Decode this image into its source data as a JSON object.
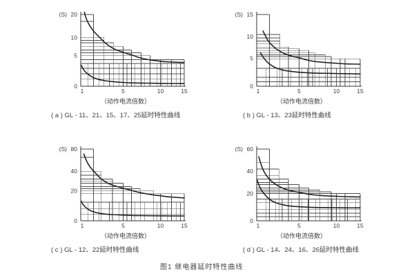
{
  "figure_caption": "图1  继电器延时特性曲线",
  "colors": {
    "curve": "#222222",
    "band": "#4a4a4a",
    "minor_grid": "#5a5a5a",
    "axis": "#333333",
    "text": "#3a3a3a"
  },
  "chart_data": [
    {
      "type": "line",
      "panel": "a",
      "caption": "( a ) GL - 11、21、15、17、25延时特性曲线",
      "xlabel": "（动作电流倍数）",
      "ylabel_unit": "(S)",
      "x_ticks": [
        {
          "v": 1,
          "f": 0
        },
        {
          "v": 5,
          "f": 0.41
        },
        {
          "v": 10,
          "f": 0.77
        },
        {
          "v": 15,
          "f": 1
        }
      ],
      "y_ticks": [
        {
          "v": 0,
          "f": 0
        },
        {
          "v": 5,
          "f": 0.43
        },
        {
          "v": 10,
          "f": 0.68
        },
        {
          "v": 20,
          "f": 1
        }
      ],
      "band_steps": [
        [
          1,
          2.2,
          20
        ],
        [
          2.2,
          3.2,
          10
        ],
        [
          3.2,
          4.1,
          8.5
        ],
        [
          4.1,
          5,
          7.5
        ],
        [
          5,
          6.1,
          6.5
        ],
        [
          6.1,
          7.4,
          5.7
        ],
        [
          7.4,
          8.6,
          5
        ],
        [
          8.6,
          15,
          4.3
        ]
      ],
      "h_gridlines": [
        1.2,
        2,
        2.9,
        3.7,
        9.2,
        17
      ],
      "v_gridlines": [
        10,
        12.3
      ],
      "minor_vlines": {
        "top_value": 3.7,
        "xs": [
          1.7,
          2.7,
          3.7,
          4.6,
          5.5,
          6.6,
          7.9,
          9.5,
          10.3,
          11.4,
          13.3,
          14.2
        ]
      },
      "series": [
        {
          "name": "upper-limit",
          "points": [
            [
              1.35,
              21
            ],
            [
              1.5,
              18.5
            ],
            [
              1.8,
              15.5
            ],
            [
              2.2,
              12.8
            ],
            [
              2.7,
              10.4
            ],
            [
              3.3,
              8.5
            ],
            [
              3.8,
              7.4
            ],
            [
              4.3,
              6.6
            ],
            [
              5,
              5.9
            ],
            [
              5.5,
              5.5
            ],
            [
              6.2,
              5.1
            ],
            [
              7,
              4.7
            ],
            [
              8,
              4.4
            ],
            [
              9,
              4.2
            ],
            [
              10,
              4.05
            ],
            [
              11,
              3.98
            ],
            [
              13,
              3.9
            ],
            [
              15,
              3.85
            ]
          ]
        },
        {
          "name": "lower-limit",
          "points": [
            [
              1.05,
              3.4
            ],
            [
              1.2,
              2.9
            ],
            [
              1.4,
              2.4
            ],
            [
              1.8,
              1.8
            ],
            [
              2.2,
              1.4
            ],
            [
              2.7,
              1.1
            ],
            [
              3.3,
              0.9
            ],
            [
              4,
              0.75
            ],
            [
              5,
              0.62
            ],
            [
              6,
              0.55
            ],
            [
              8,
              0.5
            ],
            [
              10,
              0.47
            ],
            [
              12,
              0.45
            ],
            [
              15,
              0.44
            ]
          ]
        }
      ]
    },
    {
      "type": "line",
      "panel": "b",
      "caption": "( b ) GL - 13、23延时特性曲线",
      "xlabel": "（动作电流倍数）",
      "ylabel_unit": "(S)",
      "x_ticks": [
        {
          "v": 1,
          "f": 0
        },
        {
          "v": 5,
          "f": 0.41
        },
        {
          "v": 10,
          "f": 0.77
        },
        {
          "v": 15,
          "f": 1
        }
      ],
      "y_ticks": [
        {
          "v": 0,
          "f": 0
        },
        {
          "v": 5,
          "f": 0.39
        },
        {
          "v": 10,
          "f": 0.69
        },
        {
          "v": 15,
          "f": 1
        }
      ],
      "band_steps": [
        [
          1,
          2.2,
          15
        ],
        [
          2.2,
          3.2,
          10.5
        ],
        [
          3.2,
          4,
          7.6
        ],
        [
          4,
          5,
          7.2
        ],
        [
          5,
          6.3,
          6.8
        ],
        [
          6.3,
          7.1,
          6.3
        ],
        [
          7.1,
          8.5,
          5.8
        ],
        [
          8.5,
          9.3,
          5.4
        ],
        [
          9.3,
          15,
          4.9
        ]
      ],
      "h_gridlines": [
        0.8,
        1.6,
        3.2,
        8.4,
        9,
        9.7
      ],
      "v_gridlines": [
        10.8,
        11.8
      ],
      "minor_vlines": {
        "top_value": 3.2,
        "xs": [
          1.9,
          2.9,
          3.4,
          4.2,
          5.4,
          6.1,
          6.8,
          7.7,
          8.8,
          10,
          12.8,
          14
        ]
      },
      "series": [
        {
          "name": "upper-limit",
          "points": [
            [
              1.6,
              11.3
            ],
            [
              1.8,
              10.3
            ],
            [
              2.1,
              9
            ],
            [
              2.5,
              7.9
            ],
            [
              3,
              6.9
            ],
            [
              3.6,
              6.1
            ],
            [
              4.3,
              5.5
            ],
            [
              5,
              5.1
            ],
            [
              6,
              4.7
            ],
            [
              7,
              4.45
            ],
            [
              8,
              4.3
            ],
            [
              9,
              4.2
            ],
            [
              10,
              4.1
            ],
            [
              12,
              4
            ],
            [
              15,
              3.95
            ]
          ]
        },
        {
          "name": "lower-limit",
          "points": [
            [
              1.35,
              6.3
            ],
            [
              1.6,
              5.3
            ],
            [
              2,
              4.3
            ],
            [
              2.5,
              3.6
            ],
            [
              3,
              3.15
            ],
            [
              3.7,
              2.8
            ],
            [
              4.5,
              2.6
            ],
            [
              5.5,
              2.45
            ],
            [
              7,
              2.35
            ],
            [
              9,
              2.3
            ],
            [
              11,
              2.25
            ],
            [
              15,
              2.2
            ]
          ]
        }
      ]
    },
    {
      "type": "line",
      "panel": "c",
      "caption": "( c ) GL - 12、22延时特性曲线",
      "xlabel": "（动作电流倍数）",
      "ylabel_unit": "(S)",
      "x_ticks": [
        {
          "v": 1,
          "f": 0
        },
        {
          "v": 5,
          "f": 0.41
        },
        {
          "v": 10,
          "f": 0.77
        },
        {
          "v": 15,
          "f": 1
        }
      ],
      "y_ticks": [
        {
          "v": 0,
          "f": 0
        },
        {
          "v": 20,
          "f": 0.42
        },
        {
          "v": 40,
          "f": 0.69
        },
        {
          "v": 80,
          "f": 1
        }
      ],
      "band_steps": [
        [
          1,
          2.2,
          80
        ],
        [
          2.2,
          2.9,
          40
        ],
        [
          2.9,
          4,
          32
        ],
        [
          4,
          5,
          27.6
        ],
        [
          5,
          6.1,
          24.2
        ],
        [
          6.1,
          7.3,
          22
        ],
        [
          7.3,
          9.1,
          20
        ],
        [
          9.1,
          15,
          18
        ]
      ],
      "h_gridlines": [
        4.2,
        8.1,
        12.4,
        30,
        36,
        65
      ],
      "v_gridlines": [
        10,
        12.3
      ],
      "minor_vlines": {
        "top_value": 12.4,
        "xs": [
          1.7,
          2.7,
          3.7,
          4.6,
          5.5,
          6.6,
          7.9,
          9.5,
          10.3,
          11.4,
          13.3,
          14.2
        ]
      },
      "series": [
        {
          "name": "upper-limit",
          "points": [
            [
              1.3,
              71
            ],
            [
              1.45,
              63
            ],
            [
              1.7,
              53
            ],
            [
              2,
              45
            ],
            [
              2.4,
              38
            ],
            [
              2.9,
              32.5
            ],
            [
              3.5,
              28
            ],
            [
              4.2,
              25
            ],
            [
              5,
              22.5
            ],
            [
              6,
              20.5
            ],
            [
              7,
              19
            ],
            [
              8,
              18
            ],
            [
              9,
              17.2
            ],
            [
              10,
              16.6
            ],
            [
              12,
              15.8
            ],
            [
              15,
              15.2
            ]
          ]
        },
        {
          "name": "lower-limit",
          "points": [
            [
              1.05,
              13
            ],
            [
              1.2,
              11
            ],
            [
              1.45,
              9
            ],
            [
              1.8,
              7.2
            ],
            [
              2.2,
              6
            ],
            [
              2.7,
              5.1
            ],
            [
              3.3,
              4.5
            ],
            [
              4,
              4.1
            ],
            [
              5,
              3.8
            ],
            [
              6.5,
              3.5
            ],
            [
              8,
              3.4
            ],
            [
              10,
              3.3
            ],
            [
              12,
              3.25
            ],
            [
              15,
              3.2
            ]
          ]
        }
      ]
    },
    {
      "type": "line",
      "panel": "d",
      "caption": "( d ) GL - 14、24、16、26延时特性曲线",
      "xlabel": "（动作电流倍数）",
      "ylabel_unit": "(S)",
      "x_ticks": [
        {
          "v": 1,
          "f": 0
        },
        {
          "v": 5,
          "f": 0.41
        },
        {
          "v": 10,
          "f": 0.77
        },
        {
          "v": 15,
          "f": 1
        }
      ],
      "y_ticks": [
        {
          "v": 0,
          "f": 0
        },
        {
          "v": 20,
          "f": 0.38
        },
        {
          "v": 40,
          "f": 0.69
        },
        {
          "v": 60,
          "f": 1
        }
      ],
      "band_steps": [
        [
          1,
          2.2,
          60
        ],
        [
          2.2,
          3.1,
          42
        ],
        [
          3.1,
          4,
          33
        ],
        [
          4,
          5,
          28
        ],
        [
          5,
          6.3,
          25
        ],
        [
          6.3,
          7.8,
          23
        ],
        [
          7.8,
          9.3,
          21.5
        ],
        [
          9.3,
          15,
          20
        ]
      ],
      "h_gridlines": [
        3.1,
        5.6,
        8.2,
        13.3,
        16,
        30,
        36,
        48
      ],
      "v_gridlines": [
        10,
        11.8
      ],
      "minor_vlines": {
        "top_value": 16,
        "xs": [
          1.9,
          2.8,
          3.4,
          4.3,
          5.4,
          6.2,
          7.2,
          8.9,
          9.4,
          10.7,
          12.3,
          14
        ]
      },
      "series": [
        {
          "name": "upper-limit",
          "points": [
            [
              1.2,
              53
            ],
            [
              1.4,
              46.5
            ],
            [
              1.7,
              39.5
            ],
            [
              2.1,
              34
            ],
            [
              2.6,
              29.5
            ],
            [
              3.2,
              26
            ],
            [
              4,
              23
            ],
            [
              5,
              21
            ],
            [
              6,
              19.8
            ],
            [
              7,
              19
            ],
            [
              8,
              18.5
            ],
            [
              10,
              18
            ],
            [
              12,
              17.7
            ],
            [
              15,
              17.5
            ]
          ]
        },
        {
          "name": "lower-limit",
          "points": [
            [
              1.05,
              32
            ],
            [
              1.2,
              28
            ],
            [
              1.45,
              23
            ],
            [
              1.8,
              19
            ],
            [
              2.2,
              15.8
            ],
            [
              2.7,
              13.6
            ],
            [
              3.3,
              12.1
            ],
            [
              4,
              11
            ],
            [
              5,
              10.3
            ],
            [
              6.5,
              9.9
            ],
            [
              8,
              9.7
            ],
            [
              10,
              9.6
            ],
            [
              12,
              9.5
            ],
            [
              15,
              9.5
            ]
          ]
        }
      ]
    }
  ]
}
